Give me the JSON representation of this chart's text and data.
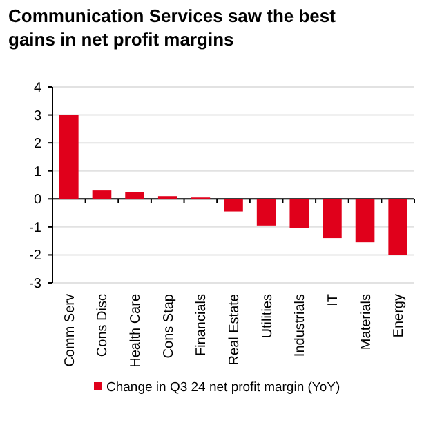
{
  "chart_data": {
    "type": "bar",
    "title": "Communication Services saw the best gains in net profit margins",
    "categories": [
      "Comm Serv",
      "Cons Disc",
      "Health Care",
      "Cons Stap",
      "Financials",
      "Real Estate",
      "Utilities",
      "Industrials",
      "IT",
      "Materials",
      "Energy"
    ],
    "series": [
      {
        "name": "Change in Q3 24 net profit margin (YoY)",
        "color": "#e0001b",
        "values": [
          3.0,
          0.3,
          0.25,
          0.1,
          0.05,
          -0.45,
          -0.95,
          -1.05,
          -1.4,
          -1.55,
          -2.0
        ]
      }
    ],
    "ylim": [
      -3,
      4
    ],
    "yticks": [
      -3,
      -2,
      -1,
      0,
      1,
      2,
      3,
      4
    ],
    "grid": "y",
    "legend": "bottom"
  }
}
